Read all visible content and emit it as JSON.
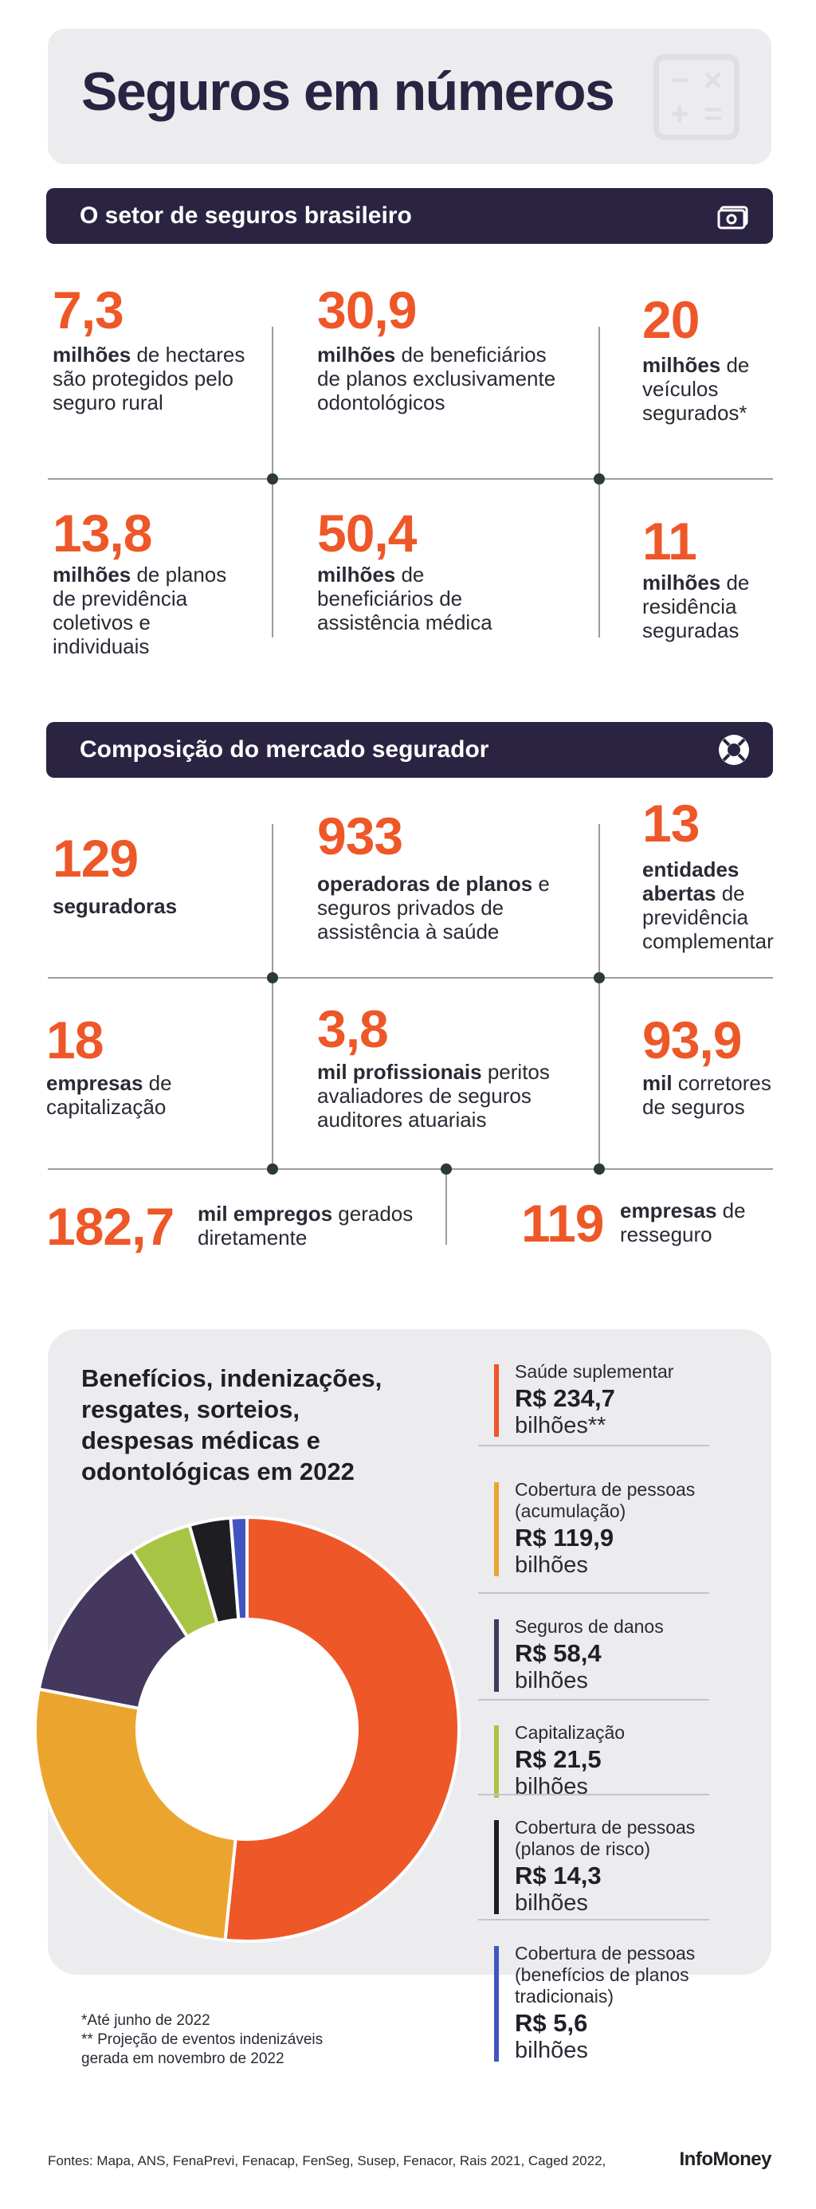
{
  "header": {
    "title": "Seguros em números"
  },
  "section1": {
    "title": "O setor de seguros brasileiro",
    "icon": "money-icon",
    "stats": [
      {
        "value": "7,3",
        "bold": "milhões",
        "rest": " de hectares são protegidos pelo seguro rural"
      },
      {
        "value": "30,9",
        "bold": "milhões",
        "rest": " de beneficiários de planos exclusivamente odontológicos"
      },
      {
        "value": "20",
        "bold": "milhões",
        "rest": " de veículos segurados*"
      },
      {
        "value": "13,8",
        "bold": "milhões",
        "rest": " de planos de previdência coletivos e individuais"
      },
      {
        "value": "50,4",
        "bold": "milhões",
        "rest": " de beneficiários de assistência médica"
      },
      {
        "value": "11",
        "bold": "milhões",
        "rest": " de residência seguradas"
      }
    ]
  },
  "section2": {
    "title": "Composição do mercado segurador",
    "icon": "lifebuoy-icon",
    "stats": [
      {
        "value": "129",
        "bold": "seguradoras",
        "rest": ""
      },
      {
        "value": "933",
        "bold": "operadoras de planos",
        "rest": " e seguros privados de assistência à saúde"
      },
      {
        "value": "13",
        "bold": "entidades abertas",
        "rest": " de previdência complementar"
      },
      {
        "value": "18",
        "bold": "empresas",
        "rest": " de capitalização"
      },
      {
        "value": "3,8",
        "bold": "mil profissionais",
        "rest": " peritos avaliadores de seguros auditores atuariais"
      },
      {
        "value": "93,9",
        "bold": "mil",
        "rest": " corretores de seguros"
      },
      {
        "value": "182,7",
        "bold": "mil empregos",
        "rest": " gerados diretamente"
      },
      {
        "value": "119",
        "bold": "empresas",
        "rest": " de resseguro"
      }
    ]
  },
  "chart_data": {
    "type": "pie",
    "title": "Benefícios, indenizações, resgates, sorteios, despesas médicas e odontológicas em 2022",
    "categories": [
      "Saúde suplementar",
      "Cobertura de pessoas (acumulação)",
      "Seguros de danos",
      "Capitalização",
      "Cobertura de pessoas (planos de risco)",
      "Cobertura de pessoas (benefícios de planos tradicionais)"
    ],
    "values": [
      234.7,
      119.9,
      58.4,
      21.5,
      14.3,
      5.6
    ],
    "value_labels": [
      "R$ 234,7",
      "R$ 119,9",
      "R$ 58,4",
      "R$ 21,5",
      "R$ 14,3",
      "R$ 5,6"
    ],
    "units": [
      "bilhões**",
      "bilhões",
      "bilhões",
      "bilhões",
      "bilhões",
      "bilhões"
    ],
    "colors": [
      "#ee5727",
      "#eba52f",
      "#45385f",
      "#a8c444",
      "#1d1d22",
      "#4055c0"
    ],
    "donut": true
  },
  "notes": {
    "line1": "*Até junho de 2022",
    "line2": "** Projeção de eventos indenizáveis",
    "line3": "gerada em novembro de 2022"
  },
  "footer": {
    "sources": "Fontes: Mapa, ANS, FenaPrevi, Fenacap, FenSeg, Susep, Fenacor, Rais 2021, Caged 2022,",
    "logo": "InfoMoney"
  }
}
